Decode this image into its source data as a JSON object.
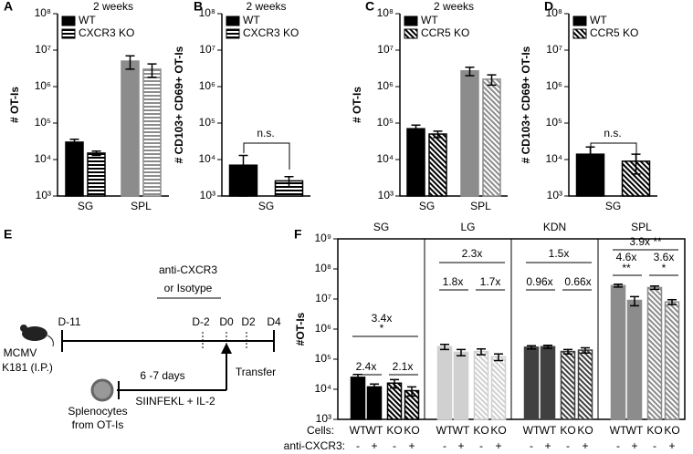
{
  "chart_data": [
    {
      "type": "bar",
      "label": "A",
      "title": "2 weeks",
      "ylabel": "# OT-Is",
      "log": true,
      "legend": "upper left",
      "categories": [
        "SG",
        "SPL"
      ],
      "ylim": [
        1000,
        100000000
      ],
      "yticks": [
        {
          "value": 1000,
          "label": "10³"
        },
        {
          "value": 10000,
          "label": "10⁴"
        },
        {
          "value": 100000,
          "label": "10⁵"
        },
        {
          "value": 1000000,
          "label": "10⁶"
        },
        {
          "value": 10000000,
          "label": "10⁷"
        },
        {
          "value": 100000000,
          "label": "10⁸"
        }
      ],
      "series": [
        {
          "name": "WT",
          "colors": [
            "#000000",
            "#8c8c8c"
          ],
          "pattern": "solid",
          "values": [
            30000,
            5000000
          ],
          "errors": [
            6000,
            2000000
          ]
        },
        {
          "name": "CXCR3 KO",
          "colors": [
            "#000000",
            "#8c8c8c"
          ],
          "pattern": "horizontal",
          "values": [
            15000,
            3000000
          ],
          "errors": [
            2000,
            1200000
          ]
        }
      ]
    },
    {
      "type": "bar",
      "label": "B",
      "title": "2 weeks",
      "ylabel": "# CD103+ CD69+ OT-Is",
      "log": true,
      "legend": "upper left",
      "categories": [
        "SG"
      ],
      "ylim": [
        1000,
        100000000
      ],
      "yticks": [
        {
          "value": 1000,
          "label": "10³"
        },
        {
          "value": 10000,
          "label": "10⁴"
        },
        {
          "value": 100000,
          "label": "10⁵"
        },
        {
          "value": 1000000,
          "label": "10⁶"
        },
        {
          "value": 10000000,
          "label": "10⁷"
        },
        {
          "value": 100000000,
          "label": "10⁸"
        }
      ],
      "series": [
        {
          "name": "WT",
          "colors": [
            "#000000"
          ],
          "pattern": "solid",
          "values": [
            7000
          ],
          "errors": [
            6000
          ]
        },
        {
          "name": "CXCR3 KO",
          "colors": [
            "#000000"
          ],
          "pattern": "horizontal",
          "values": [
            2600
          ],
          "errors": [
            800
          ]
        }
      ],
      "annotations": [
        "n.s."
      ]
    },
    {
      "type": "bar",
      "label": "C",
      "title": "2 weeks",
      "ylabel": "# OT-Is",
      "log": true,
      "legend": "upper left",
      "categories": [
        "SG",
        "SPL"
      ],
      "ylim": [
        1000,
        100000000
      ],
      "yticks": [
        {
          "value": 1000,
          "label": "10³"
        },
        {
          "value": 10000,
          "label": "10⁴"
        },
        {
          "value": 100000,
          "label": "10⁵"
        },
        {
          "value": 1000000,
          "label": "10⁶"
        },
        {
          "value": 10000000,
          "label": "10⁷"
        },
        {
          "value": 100000000,
          "label": "10⁸"
        }
      ],
      "series": [
        {
          "name": "WT",
          "colors": [
            "#000000",
            "#8c8c8c"
          ],
          "pattern": "solid",
          "values": [
            70000,
            2700000
          ],
          "errors": [
            18000,
            700000
          ]
        },
        {
          "name": "CCR5 KO",
          "colors": [
            "#000000",
            "#8c8c8c"
          ],
          "pattern": "diagonal",
          "values": [
            50000,
            1600000
          ],
          "errors": [
            10000,
            500000
          ]
        }
      ]
    },
    {
      "type": "bar",
      "label": "D",
      "ylabel": "# CD103+ CD69+ OT-Is",
      "log": true,
      "legend": "upper left",
      "categories": [
        "SG"
      ],
      "ylim": [
        1000,
        100000000
      ],
      "yticks": [
        {
          "value": 1000,
          "label": "10³"
        },
        {
          "value": 10000,
          "label": "10⁴"
        },
        {
          "value": 100000,
          "label": "10⁵"
        },
        {
          "value": 1000000,
          "label": "10⁶"
        },
        {
          "value": 10000000,
          "label": "10⁷"
        },
        {
          "value": 100000000,
          "label": "10⁸"
        }
      ],
      "series": [
        {
          "name": "WT",
          "colors": [
            "#000000"
          ],
          "pattern": "solid",
          "values": [
            14000
          ],
          "errors": [
            8000
          ]
        },
        {
          "name": "CCR5 KO",
          "colors": [
            "#000000"
          ],
          "pattern": "diagonal",
          "values": [
            9000
          ],
          "errors": [
            5000
          ]
        }
      ],
      "annotations": [
        "n.s."
      ]
    },
    {
      "type": "bar",
      "label": "F",
      "ylabel": "#OT-Is",
      "log": true,
      "categories": [
        "SG",
        "LG",
        "KDN",
        "SPL"
      ],
      "ylim": [
        1000,
        1000000000
      ],
      "yticks": [
        {
          "value": 1000,
          "label": "10³"
        },
        {
          "value": 10000,
          "label": "10⁴"
        },
        {
          "value": 100000,
          "label": "10⁵"
        },
        {
          "value": 1000000,
          "label": "10⁶"
        },
        {
          "value": 10000000,
          "label": "10⁷"
        },
        {
          "value": 100000000,
          "label": "10⁸"
        },
        {
          "value": 1000000000,
          "label": "10⁹"
        }
      ],
      "series": [
        {
          "colors": [
            "#000000",
            "#d0d0d0",
            "#404040",
            "#8c8c8c"
          ],
          "pattern": "solid",
          "values": [
            25000,
            260000,
            250000,
            28000000
          ],
          "errors": [
            6000,
            50000,
            30000,
            3000000
          ]
        },
        {
          "colors": [
            "#000000",
            "#d0d0d0",
            "#404040",
            "#8c8c8c"
          ],
          "pattern": "solid",
          "values": [
            12000,
            170000,
            260000,
            9000000
          ],
          "errors": [
            3000,
            40000,
            30000,
            3000000
          ]
        },
        {
          "colors": [
            "#000000",
            "#d0d0d0",
            "#404040",
            "#8c8c8c"
          ],
          "pattern": "diagonal",
          "values": [
            16000,
            180000,
            180000,
            24000000
          ],
          "errors": [
            5000,
            40000,
            30000,
            3000000
          ]
        },
        {
          "colors": [
            "#000000",
            "#d0d0d0",
            "#404040",
            "#8c8c8c"
          ],
          "pattern": "diagonal",
          "values": [
            9000,
            120000,
            200000,
            8000000
          ],
          "errors": [
            3000,
            30000,
            40000,
            1500000
          ]
        }
      ],
      "cells_label": "Cells:",
      "cells": [
        "WT",
        "WT",
        "KO",
        "KO"
      ],
      "treatment_label": "anti-CXCR3:",
      "treatment": [
        "-",
        "+",
        "-",
        "+"
      ],
      "annotations": [
        "2.4x",
        "2.1x",
        "3.4x",
        "*",
        "1.8x",
        "1.7x",
        "2.3x",
        "0.96x",
        "0.66x",
        "1.5x",
        "3.9x **",
        "4.6x",
        "**",
        "3.6x",
        "*"
      ]
    }
  ],
  "diagram": {
    "label": "E",
    "treatment": [
      "anti-CXCR3",
      "or Isotype"
    ],
    "days": [
      "D-11",
      "D-2",
      "D0",
      "D2",
      "D4"
    ],
    "infection": [
      "MCMV",
      "K181 (I.P.)"
    ],
    "duration": "6 -7 days",
    "transfer": "Transfer",
    "cells": [
      "Splenocytes",
      "from OT-Is"
    ],
    "culture": "SIINFEKL + IL-2"
  }
}
